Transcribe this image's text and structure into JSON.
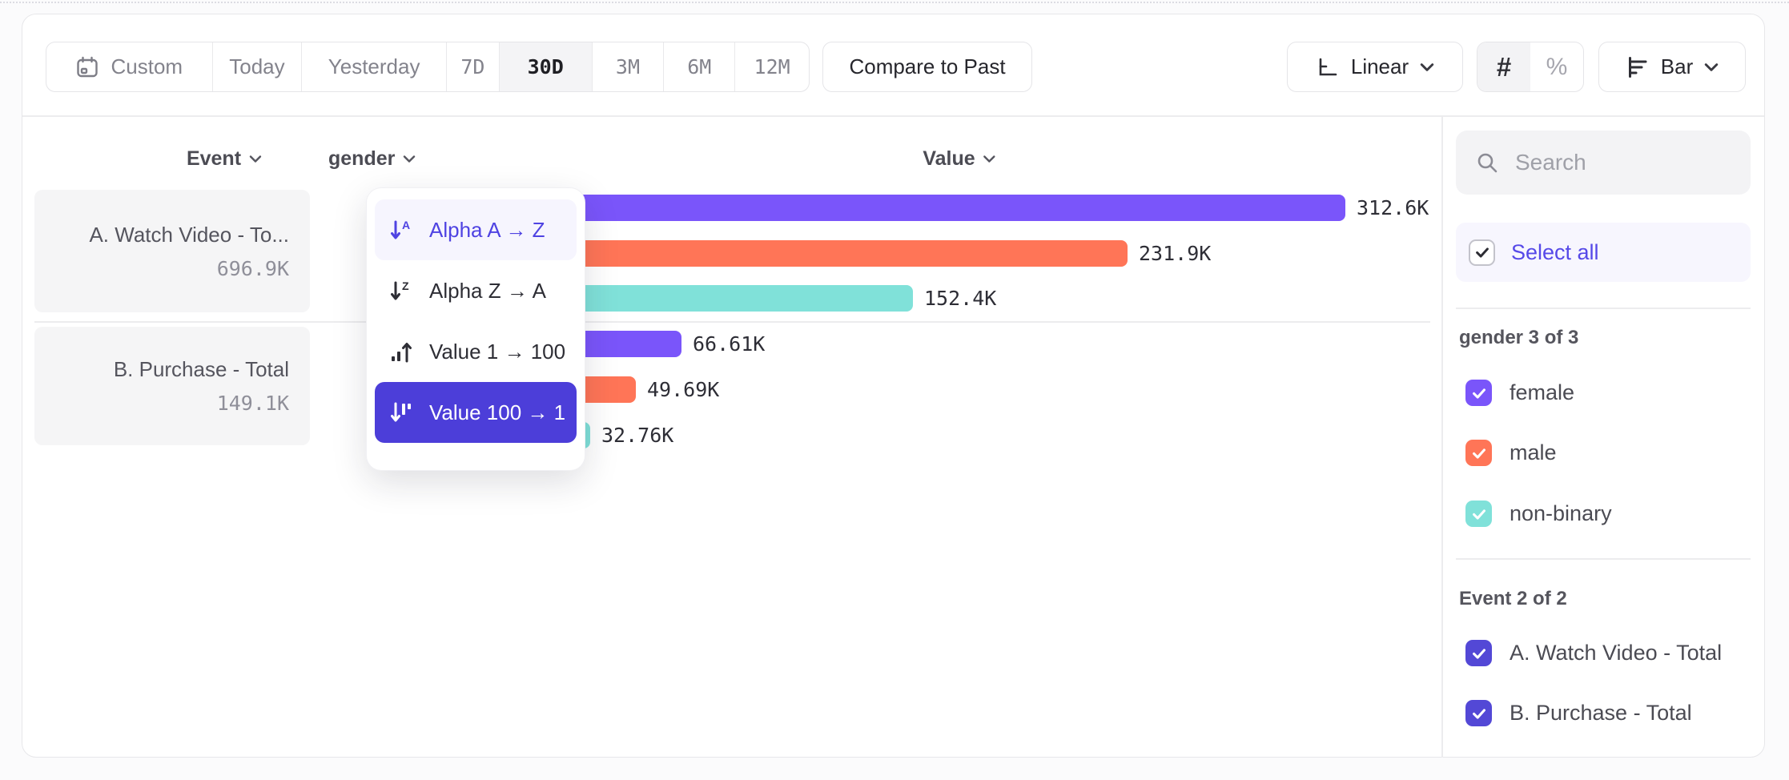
{
  "toolbar": {
    "date_ranges": {
      "items": [
        {
          "label": "Custom"
        },
        {
          "label": "Today"
        },
        {
          "label": "Yesterday"
        },
        {
          "label": "7D"
        },
        {
          "label": "30D",
          "selected": true
        },
        {
          "label": "3M"
        },
        {
          "label": "6M"
        },
        {
          "label": "12M"
        }
      ]
    },
    "compare_button": "Compare to Past",
    "scale_selector": "Linear",
    "value_format": {
      "count": "#",
      "percent": "%",
      "selected": "count"
    },
    "chart_type_selector": "Bar"
  },
  "columns": {
    "event": "Event",
    "breakdown": "gender",
    "value": "Value"
  },
  "event_cards": [
    {
      "title": "A. Watch Video - To...",
      "value": "696.9K"
    },
    {
      "title": "B. Purchase - Total",
      "value": "149.1K"
    }
  ],
  "sort_menu": {
    "items": [
      {
        "label": "Alpha A → Z",
        "state": "active"
      },
      {
        "label": "Alpha Z → A",
        "state": "normal"
      },
      {
        "label": "Value 1 → 100",
        "state": "normal"
      },
      {
        "label": "Value 100 → 1",
        "state": "selected"
      }
    ]
  },
  "chart_data": {
    "type": "bar",
    "orientation": "horizontal",
    "value_axis_label": "Value",
    "max_value": 312600,
    "sort": "Value 100 → 1",
    "groups": [
      {
        "event": "A. Watch Video - Total",
        "bars": [
          {
            "segment": "female",
            "value": 312600,
            "label": "312.6K",
            "color": "#7a55fa"
          },
          {
            "segment": "male",
            "value": 231900,
            "label": "231.9K",
            "color": "#ff7557"
          },
          {
            "segment": "non-binary",
            "value": 152400,
            "label": "152.4K",
            "color": "#80e1d9"
          }
        ]
      },
      {
        "event": "B. Purchase - Total",
        "bars": [
          {
            "segment": "female",
            "value": 66610,
            "label": "66.61K",
            "color": "#7a55fa"
          },
          {
            "segment": "male",
            "value": 49690,
            "label": "49.69K",
            "color": "#ff7557"
          },
          {
            "segment": "non-binary",
            "value": 32760,
            "label": "32.76K",
            "color": "#80e1d9"
          }
        ]
      }
    ]
  },
  "sidebar": {
    "search_placeholder": "Search",
    "select_all": "Select all",
    "gender_section": {
      "header": "gender 3 of 3",
      "items": [
        {
          "label": "female",
          "color": "#7a55fa",
          "checked": true
        },
        {
          "label": "male",
          "color": "#ff7557",
          "checked": true
        },
        {
          "label": "non-binary",
          "color": "#80e1d9",
          "checked": true
        }
      ]
    },
    "event_section": {
      "header": "Event 2 of 2",
      "items": [
        {
          "label": "A. Watch Video - Total",
          "color": "#5348d6",
          "checked": true
        },
        {
          "label": "B. Purchase - Total",
          "color": "#5348d6",
          "checked": true
        }
      ]
    }
  },
  "colors": {
    "accent_purple": "#5649e8",
    "selected_sort_bg": "#4c3ed9",
    "bar_purple": "#7a55fa",
    "bar_orange": "#ff7557",
    "bar_teal": "#80e1d9"
  }
}
